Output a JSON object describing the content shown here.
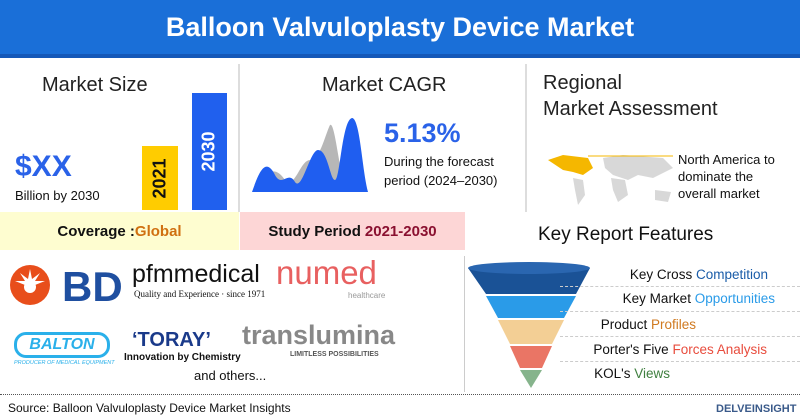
{
  "header": {
    "title": "Balloon Valvuloplasty Device Market"
  },
  "market_size": {
    "title": "Market Size",
    "value": "$XX",
    "unit": "Billion by 2030",
    "bars": [
      {
        "label": "2021",
        "color": "#ffcc00"
      },
      {
        "label": "2030",
        "color": "#2060ee"
      }
    ]
  },
  "market_cagr": {
    "title": "Market CAGR",
    "value": "5.13%",
    "desc_line1": "During the forecast",
    "desc_line2": "period (2024–2030)"
  },
  "regional": {
    "title_line1": "Regional",
    "title_line2": "Market Assessment",
    "text_line1": "North America to",
    "text_line2": "dominate the",
    "text_line3": "overall market"
  },
  "coverage": {
    "label": "Coverage : ",
    "value": "Global"
  },
  "study_period": {
    "label": "Study Period ",
    "value": "2021-2030"
  },
  "features": {
    "title": "Key Report Features",
    "items": [
      {
        "a": "Key Cross ",
        "b": "Competition",
        "color": "#1a5ca8",
        "funnel": "#1a5296"
      },
      {
        "a": "Key Market ",
        "b": "Opportunities",
        "color": "#2a9be8",
        "funnel": "#2a9be8"
      },
      {
        "a": "Product ",
        "b": "Profiles",
        "color": "#d07a20",
        "funnel": "#f3cf95"
      },
      {
        "a": "Porter's Five ",
        "b": "Forces Analysis",
        "color": "#e84c3d",
        "funnel": "#ea7565"
      },
      {
        "a": "KOL's ",
        "b": "Views",
        "color": "#3f7f3f",
        "funnel": "#86b48c"
      }
    ]
  },
  "companies": {
    "bd": "BD",
    "pfm": "pfmmedical",
    "pfm_tag": "Quality and Experience · since 1971",
    "numed": "numed",
    "numed_tag": "healthcare",
    "balton": "BALTON",
    "balton_tag": "PRODUCER OF MEDICAL EQUIPMENT",
    "toray": "‘TORAY’",
    "toray_tag": "Innovation by Chemistry",
    "translumina": "translumina",
    "translumina_tag": "LIMITLESS POSSIBILITIES",
    "others": "and others..."
  },
  "footer": {
    "source": "Source: Balloon Valvuloplasty Device Market Insights",
    "brand": "DELVEINSIGHT"
  }
}
